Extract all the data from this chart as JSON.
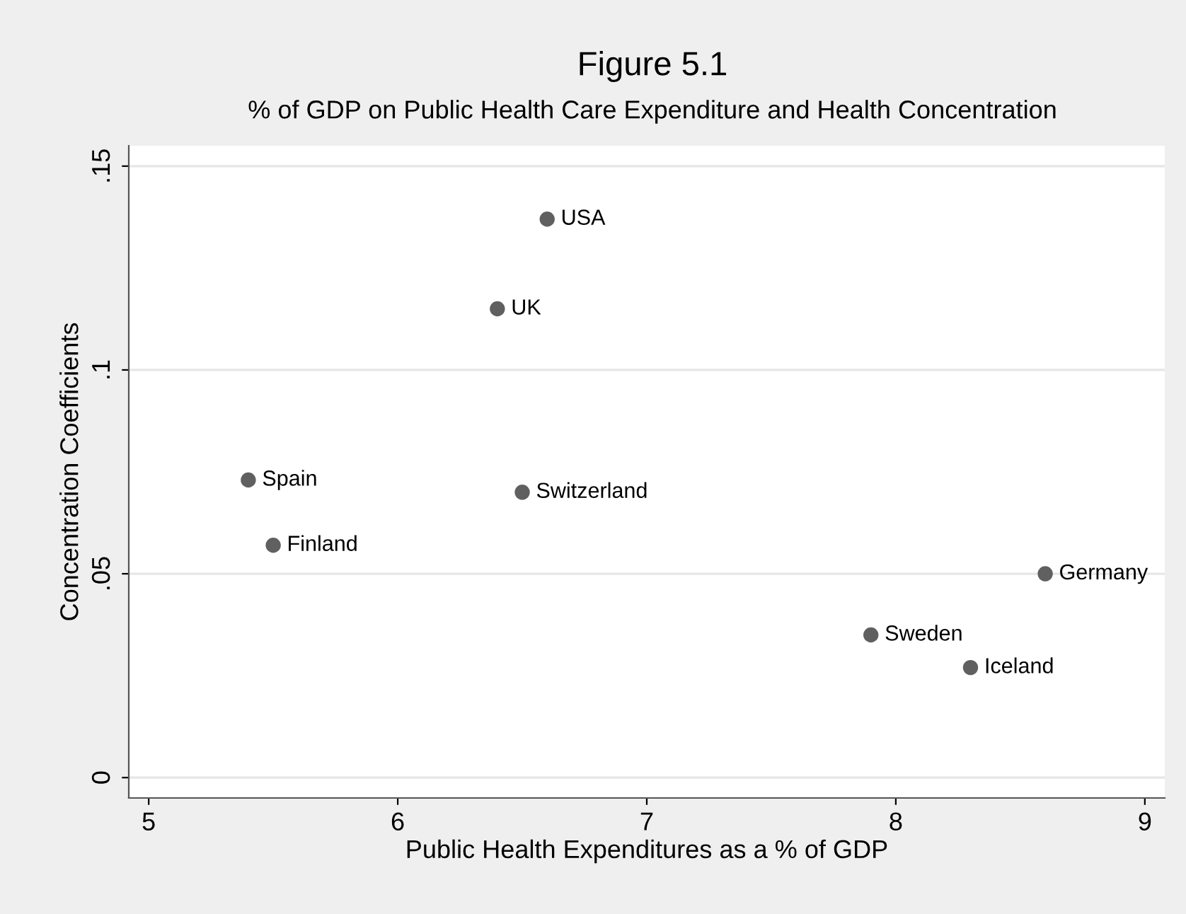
{
  "chart_data": {
    "type": "scatter",
    "title": "Figure 5.1",
    "subtitle": "% of GDP on Public Health Care Expenditure and Health Concentration",
    "xlabel": "Public Health Expenditures as a % of GDP",
    "ylabel": "Concentration Coefficients",
    "x": [
      6.6,
      6.4,
      5.4,
      6.5,
      5.5,
      8.6,
      7.9,
      8.3
    ],
    "series": [
      {
        "color": "#606060",
        "values": [
          0.137,
          0.115,
          0.073,
          0.07,
          0.057,
          0.05,
          0.035,
          0.027
        ]
      }
    ],
    "annotations": [
      {
        "text": "USA",
        "x": 6.6,
        "y": 0.137
      },
      {
        "text": "UK",
        "x": 6.4,
        "y": 0.115
      },
      {
        "text": "Spain",
        "x": 5.4,
        "y": 0.073
      },
      {
        "text": "Switzerland",
        "x": 6.5,
        "y": 0.07
      },
      {
        "text": "Finland",
        "x": 5.5,
        "y": 0.057
      },
      {
        "text": "Germany",
        "x": 8.6,
        "y": 0.05
      },
      {
        "text": "Sweden",
        "x": 7.9,
        "y": 0.035
      },
      {
        "text": "Iceland",
        "x": 8.3,
        "y": 0.027
      }
    ],
    "xlim": [
      4.92,
      9.08
    ],
    "ylim": [
      -0.005,
      0.155
    ],
    "xticks": [
      5,
      6,
      7,
      8,
      9
    ],
    "yticks": [
      {
        "value": 0,
        "label": "0"
      },
      {
        "value": 0.05,
        "label": ".05"
      },
      {
        "value": 0.1,
        "label": ".1"
      },
      {
        "value": 0.15,
        "label": ".15"
      }
    ],
    "grid": "y",
    "marker": "circle",
    "legend": false
  }
}
